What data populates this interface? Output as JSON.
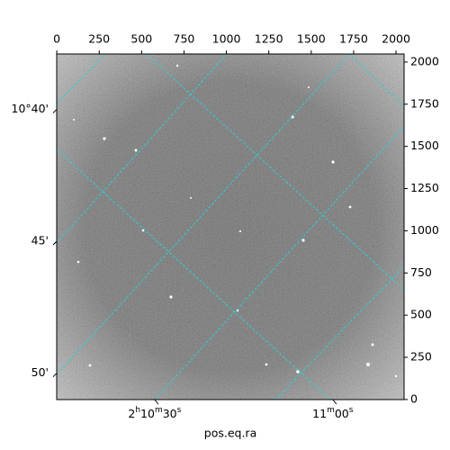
{
  "chart_data": {
    "type": "image",
    "xlabel": "pos.eq.ra",
    "xlim": [
      -0.5,
      2047.5
    ],
    "xticks": [
      0,
      250,
      500,
      750,
      1000,
      1250,
      1500,
      1750,
      2000
    ],
    "ylim": [
      -0.5,
      2047.5
    ],
    "yticks": [
      0,
      250,
      500,
      750,
      1000,
      1250,
      1500,
      1750,
      2000
    ],
    "ralim": [
      13.5,
      72.0
    ],
    "raticks": [
      {
        "value": 30,
        "label": "2h10m30s"
      },
      {
        "value": 60,
        "label": "11m00s"
      }
    ],
    "declim": [
      51.0,
      37.9
    ],
    "decticks": [
      {
        "value": 40,
        "label": "10°40'"
      },
      {
        "value": 45,
        "label": "45'"
      },
      {
        "value": 50,
        "label": "50'"
      }
    ],
    "grid_color": "#2fd0d0",
    "grid": true
  }
}
